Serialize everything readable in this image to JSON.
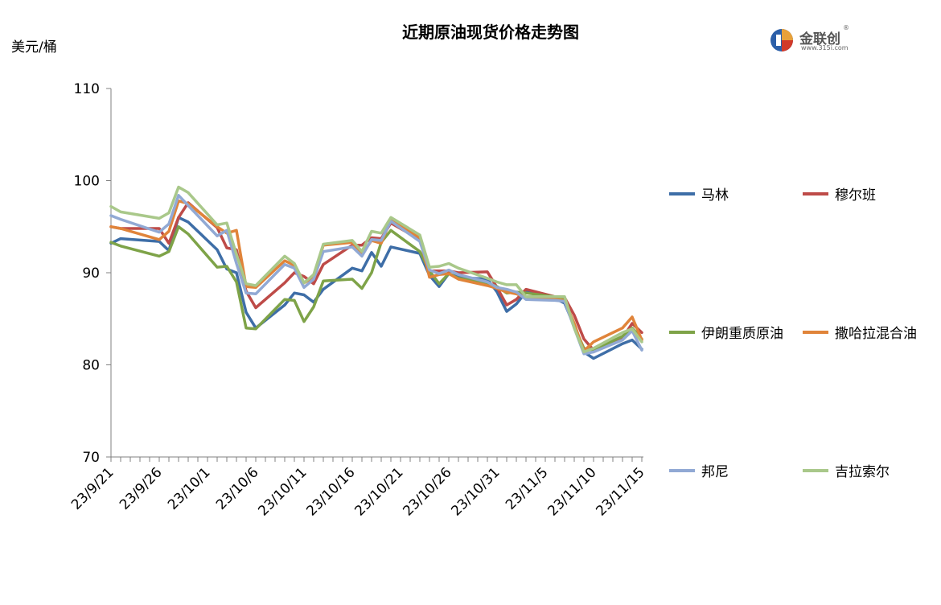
{
  "header": {
    "title": "近期原油现货价格走势图",
    "unit": "美元/桶"
  },
  "logo": {
    "name": "金联创",
    "url_text": "www.315i.com",
    "reg_mark": "®"
  },
  "colors": {
    "axis": "#808080",
    "text": "#000000"
  },
  "chart_data": {
    "type": "line",
    "title": "近期原油现货价格走势图",
    "ylabel": "美元/桶",
    "xlabel": "",
    "ylim": [
      70,
      110
    ],
    "y_ticks": [
      70,
      80,
      90,
      100,
      110
    ],
    "x_ticks": [
      "23/9/21",
      "23/9/26",
      "23/10/1",
      "23/10/6",
      "23/10/11",
      "23/10/16",
      "23/10/21",
      "23/10/26",
      "23/10/31",
      "23/11/5",
      "23/11/10",
      "23/11/15"
    ],
    "x_start": "2023-09-21",
    "grid": false,
    "legend_position": "right",
    "series": [
      {
        "name": "马林",
        "color": "#3e6ea7",
        "x": [
          "2023-09-21",
          "2023-09-22",
          "2023-09-26",
          "2023-09-27",
          "2023-09-28",
          "2023-09-29",
          "2023-10-02",
          "2023-10-03",
          "2023-10-04",
          "2023-10-05",
          "2023-10-06",
          "2023-10-09",
          "2023-10-10",
          "2023-10-11",
          "2023-10-12",
          "2023-10-13",
          "2023-10-16",
          "2023-10-17",
          "2023-10-18",
          "2023-10-19",
          "2023-10-20",
          "2023-10-23",
          "2023-10-24",
          "2023-10-25",
          "2023-10-26",
          "2023-10-27",
          "2023-10-30",
          "2023-10-31",
          "2023-11-01",
          "2023-11-02",
          "2023-11-03",
          "2023-11-06",
          "2023-11-07",
          "2023-11-08",
          "2023-11-09",
          "2023-11-10",
          "2023-11-13",
          "2023-11-14",
          "2023-11-15"
        ],
        "y": [
          93.2,
          93.7,
          93.4,
          92.4,
          96.0,
          95.5,
          92.5,
          90.4,
          90.0,
          85.7,
          84.0,
          86.5,
          87.8,
          87.6,
          86.8,
          88.2,
          90.5,
          90.2,
          92.2,
          90.7,
          92.8,
          92.1,
          89.7,
          88.5,
          89.9,
          89.5,
          89.3,
          87.9,
          85.8,
          86.6,
          87.9,
          87.2,
          86.7,
          84.2,
          81.4,
          80.7,
          82.3,
          82.7,
          81.7
        ]
      },
      {
        "name": "穆尔班",
        "color": "#be4b48",
        "x": [
          "2023-09-21",
          "2023-09-22",
          "2023-09-26",
          "2023-09-27",
          "2023-09-28",
          "2023-09-29",
          "2023-10-02",
          "2023-10-03",
          "2023-10-04",
          "2023-10-05",
          "2023-10-06",
          "2023-10-09",
          "2023-10-10",
          "2023-10-11",
          "2023-10-12",
          "2023-10-13",
          "2023-10-16",
          "2023-10-17",
          "2023-10-18",
          "2023-10-19",
          "2023-10-20",
          "2023-10-23",
          "2023-10-24",
          "2023-10-25",
          "2023-10-26",
          "2023-10-27",
          "2023-10-30",
          "2023-10-31",
          "2023-11-01",
          "2023-11-02",
          "2023-11-03",
          "2023-11-06",
          "2023-11-07",
          "2023-11-08",
          "2023-11-09",
          "2023-11-10",
          "2023-11-13",
          "2023-11-14",
          "2023-11-15"
        ],
        "y": [
          95.0,
          94.8,
          94.8,
          93.2,
          96.0,
          97.6,
          94.9,
          92.7,
          92.5,
          88.0,
          86.2,
          88.9,
          90.0,
          89.6,
          88.8,
          90.9,
          93.0,
          93.0,
          93.8,
          93.7,
          95.4,
          93.6,
          90.2,
          90.2,
          90.2,
          90.0,
          90.1,
          88.4,
          86.5,
          87.1,
          88.2,
          87.4,
          87.3,
          85.4,
          82.8,
          81.6,
          82.9,
          84.5,
          83.5
        ]
      },
      {
        "name": "伊朗重质原油",
        "color": "#7ea348",
        "x": [
          "2023-09-21",
          "2023-09-22",
          "2023-09-26",
          "2023-09-27",
          "2023-09-28",
          "2023-09-29",
          "2023-10-02",
          "2023-10-03",
          "2023-10-04",
          "2023-10-05",
          "2023-10-06",
          "2023-10-09",
          "2023-10-10",
          "2023-10-11",
          "2023-10-12",
          "2023-10-13",
          "2023-10-16",
          "2023-10-17",
          "2023-10-18",
          "2023-10-19",
          "2023-10-20",
          "2023-10-23",
          "2023-10-24",
          "2023-10-25",
          "2023-10-26",
          "2023-10-27",
          "2023-10-30",
          "2023-10-31",
          "2023-11-01",
          "2023-11-02",
          "2023-11-03",
          "2023-11-06",
          "2023-11-07",
          "2023-11-08",
          "2023-11-09",
          "2023-11-10",
          "2023-11-13",
          "2023-11-14",
          "2023-11-15"
        ],
        "y": [
          93.3,
          92.9,
          91.8,
          92.3,
          95.0,
          94.2,
          90.6,
          90.7,
          89.0,
          84.0,
          83.9,
          87.1,
          87.0,
          84.7,
          86.3,
          89.1,
          89.3,
          88.3,
          90.0,
          93.3,
          94.6,
          92.3,
          90.2,
          88.8,
          89.9,
          89.4,
          88.9,
          88.5,
          87.8,
          87.9,
          87.8,
          87.4,
          87.3,
          84.2,
          81.8,
          81.6,
          83.1,
          84.0,
          82.8
        ]
      },
      {
        "name": "撒哈拉混合油",
        "color": "#e0843a",
        "x": [
          "2023-09-21",
          "2023-09-22",
          "2023-09-26",
          "2023-09-27",
          "2023-09-28",
          "2023-09-29",
          "2023-10-02",
          "2023-10-03",
          "2023-10-04",
          "2023-10-05",
          "2023-10-06",
          "2023-10-09",
          "2023-10-10",
          "2023-10-11",
          "2023-10-12",
          "2023-10-13",
          "2023-10-16",
          "2023-10-17",
          "2023-10-18",
          "2023-10-19",
          "2023-10-20",
          "2023-10-23",
          "2023-10-24",
          "2023-10-25",
          "2023-10-26",
          "2023-10-27",
          "2023-10-30",
          "2023-10-31",
          "2023-11-01",
          "2023-11-02",
          "2023-11-03",
          "2023-11-06",
          "2023-11-07",
          "2023-11-08",
          "2023-11-09",
          "2023-11-10",
          "2023-11-13",
          "2023-11-14",
          "2023-11-15"
        ],
        "y": [
          95.0,
          94.8,
          93.6,
          94.5,
          97.8,
          97.5,
          95.0,
          94.3,
          94.6,
          88.5,
          88.4,
          91.3,
          90.8,
          88.9,
          89.5,
          93.0,
          93.3,
          92.0,
          93.5,
          93.2,
          95.8,
          93.8,
          89.5,
          89.8,
          89.9,
          89.3,
          88.6,
          88.3,
          87.9,
          87.7,
          87.3,
          87.1,
          87.0,
          84.5,
          81.5,
          82.5,
          84.0,
          85.2,
          82.7
        ]
      },
      {
        "name": "邦尼",
        "color": "#91a9d4",
        "x": [
          "2023-09-21",
          "2023-09-22",
          "2023-09-26",
          "2023-09-27",
          "2023-09-28",
          "2023-09-29",
          "2023-10-02",
          "2023-10-03",
          "2023-10-04",
          "2023-10-05",
          "2023-10-06",
          "2023-10-09",
          "2023-10-10",
          "2023-10-11",
          "2023-10-12",
          "2023-10-13",
          "2023-10-16",
          "2023-10-17",
          "2023-10-18",
          "2023-10-19",
          "2023-10-20",
          "2023-10-23",
          "2023-10-24",
          "2023-10-25",
          "2023-10-26",
          "2023-10-27",
          "2023-10-30",
          "2023-10-31",
          "2023-11-01",
          "2023-11-02",
          "2023-11-03",
          "2023-11-06",
          "2023-11-07",
          "2023-11-08",
          "2023-11-09",
          "2023-11-10",
          "2023-11-13",
          "2023-11-14",
          "2023-11-15"
        ],
        "y": [
          96.2,
          95.8,
          94.4,
          95.3,
          98.4,
          97.3,
          94.0,
          94.6,
          91.0,
          87.8,
          87.7,
          90.9,
          90.5,
          88.4,
          89.3,
          92.3,
          92.8,
          91.8,
          93.6,
          93.5,
          95.6,
          93.4,
          90.3,
          89.9,
          90.3,
          89.8,
          89.0,
          88.4,
          88.2,
          87.9,
          87.1,
          87.0,
          86.9,
          84.0,
          81.2,
          81.4,
          82.7,
          83.7,
          81.6
        ]
      },
      {
        "name": "吉拉索尔",
        "color": "#a9c88a",
        "x": [
          "2023-09-21",
          "2023-09-22",
          "2023-09-26",
          "2023-09-27",
          "2023-09-28",
          "2023-09-29",
          "2023-10-02",
          "2023-10-03",
          "2023-10-04",
          "2023-10-05",
          "2023-10-06",
          "2023-10-09",
          "2023-10-10",
          "2023-10-11",
          "2023-10-12",
          "2023-10-13",
          "2023-10-16",
          "2023-10-17",
          "2023-10-18",
          "2023-10-19",
          "2023-10-20",
          "2023-10-23",
          "2023-10-24",
          "2023-10-25",
          "2023-10-26",
          "2023-10-27",
          "2023-10-30",
          "2023-10-31",
          "2023-11-01",
          "2023-11-02",
          "2023-11-03",
          "2023-11-06",
          "2023-11-07",
          "2023-11-08",
          "2023-11-09",
          "2023-11-10",
          "2023-11-13",
          "2023-11-14",
          "2023-11-15"
        ],
        "y": [
          97.2,
          96.6,
          95.9,
          96.5,
          99.3,
          98.7,
          95.2,
          95.4,
          92.0,
          88.8,
          88.6,
          91.8,
          91.0,
          88.9,
          89.8,
          93.1,
          93.5,
          92.3,
          94.5,
          94.3,
          96.0,
          94.1,
          90.6,
          90.7,
          91.0,
          90.5,
          89.4,
          89.0,
          88.7,
          88.7,
          87.4,
          87.4,
          87.4,
          84.0,
          81.4,
          81.8,
          83.5,
          83.9,
          82.5
        ]
      }
    ]
  }
}
